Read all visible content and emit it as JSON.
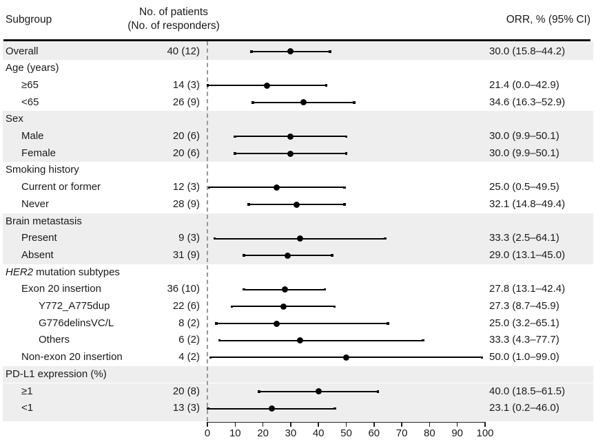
{
  "header": {
    "subgroup": "Subgroup",
    "patients_line1": "No. of patients",
    "patients_line2": "(No. of responders)",
    "orr": "ORR, % (95% CI)"
  },
  "colors": {
    "text": "#1a1a1a",
    "band": "#eeeeee",
    "dashed_line": "#979797",
    "axis": "#1a1a1a",
    "marker": "#000000",
    "rule": "#111111"
  },
  "chart_data": {
    "type": "forest",
    "x_axis_label": "",
    "xlim": [
      0,
      100
    ],
    "x_ticks": [
      0,
      10,
      20,
      30,
      40,
      50,
      60,
      70,
      80,
      90,
      100
    ],
    "reference_line_x": 0,
    "rows": [
      {
        "kind": "data",
        "label": "Overall",
        "indent": 0,
        "shaded": true,
        "patients": "40 (12)",
        "est": 30.0,
        "lo": 15.8,
        "hi": 44.2,
        "orr": "30.0 (15.8–44.2)"
      },
      {
        "kind": "section",
        "label": "Age (years)",
        "shaded": false
      },
      {
        "kind": "data",
        "label": "≥65",
        "indent": 1,
        "shaded": false,
        "patients": "14 (3)",
        "est": 21.4,
        "lo": 0.0,
        "hi": 42.9,
        "orr": "21.4 (0.0–42.9)"
      },
      {
        "kind": "data",
        "label": "<65",
        "indent": 1,
        "shaded": false,
        "patients": "26 (9)",
        "est": 34.6,
        "lo": 16.3,
        "hi": 52.9,
        "orr": "34.6 (16.3–52.9)"
      },
      {
        "kind": "section",
        "label": "Sex",
        "shaded": true
      },
      {
        "kind": "data",
        "label": "Male",
        "indent": 1,
        "shaded": true,
        "patients": "20 (6)",
        "est": 30.0,
        "lo": 9.9,
        "hi": 50.1,
        "orr": "30.0 (9.9–50.1)"
      },
      {
        "kind": "data",
        "label": "Female",
        "indent": 1,
        "shaded": true,
        "patients": "20 (6)",
        "est": 30.0,
        "lo": 9.9,
        "hi": 50.1,
        "orr": "30.0 (9.9–50.1)"
      },
      {
        "kind": "section",
        "label": "Smoking history",
        "shaded": false
      },
      {
        "kind": "data",
        "label": "Current or former",
        "indent": 1,
        "shaded": false,
        "patients": "12 (3)",
        "est": 25.0,
        "lo": 0.5,
        "hi": 49.5,
        "orr": "25.0 (0.5–49.5)"
      },
      {
        "kind": "data",
        "label": "Never",
        "indent": 1,
        "shaded": false,
        "patients": "28 (9)",
        "est": 32.1,
        "lo": 14.8,
        "hi": 49.4,
        "orr": "32.1 (14.8–49.4)"
      },
      {
        "kind": "section",
        "label": "Brain metastasis",
        "shaded": true
      },
      {
        "kind": "data",
        "label": "Present",
        "indent": 1,
        "shaded": true,
        "patients": "9 (3)",
        "est": 33.3,
        "lo": 2.5,
        "hi": 64.1,
        "orr": "33.3 (2.5–64.1)"
      },
      {
        "kind": "data",
        "label": "Absent",
        "indent": 1,
        "shaded": true,
        "patients": "31 (9)",
        "est": 29.0,
        "lo": 13.1,
        "hi": 45.0,
        "orr": "29.0 (13.1–45.0)"
      },
      {
        "kind": "section",
        "label": "HER2 mutation subtypes",
        "label_parts": [
          {
            "text": "HER2",
            "italic": true
          },
          {
            "text": " mutation subtypes",
            "italic": false
          }
        ],
        "shaded": false
      },
      {
        "kind": "data",
        "label": "Exon 20 insertion",
        "indent": 1,
        "shaded": false,
        "patients": "36 (10)",
        "est": 27.8,
        "lo": 13.1,
        "hi": 42.4,
        "orr": "27.8 (13.1–42.4)"
      },
      {
        "kind": "data",
        "label": "Y772_A775dup",
        "indent": 2,
        "shaded": false,
        "patients": "22 (6)",
        "est": 27.3,
        "lo": 8.7,
        "hi": 45.9,
        "orr": "27.3 (8.7–45.9)"
      },
      {
        "kind": "data",
        "label": "G776delinsVC/L",
        "indent": 2,
        "shaded": false,
        "patients": "8 (2)",
        "est": 25.0,
        "lo": 3.2,
        "hi": 65.1,
        "orr": "25.0 (3.2–65.1)"
      },
      {
        "kind": "data",
        "label": "Others",
        "indent": 2,
        "shaded": false,
        "patients": "6 (2)",
        "est": 33.3,
        "lo": 4.3,
        "hi": 77.7,
        "orr": "33.3 (4.3–77.7)"
      },
      {
        "kind": "data",
        "label": "Non-exon 20 insertion",
        "indent": 1,
        "shaded": false,
        "patients": "4 (2)",
        "est": 50.0,
        "lo": 1.0,
        "hi": 99.0,
        "orr": "50.0 (1.0–99.0)"
      },
      {
        "kind": "section",
        "label": "PD-L1 expression (%)",
        "shaded": true
      },
      {
        "kind": "data",
        "label": "≥1",
        "indent": 1,
        "shaded": true,
        "patients": "20 (8)",
        "est": 40.0,
        "lo": 18.5,
        "hi": 61.5,
        "orr": "40.0 (18.5–61.5)"
      },
      {
        "kind": "data",
        "label": "<1",
        "indent": 1,
        "shaded": true,
        "patients": "13 (3)",
        "est": 23.1,
        "lo": 0.2,
        "hi": 46.0,
        "orr": "23.1 (0.2–46.0)"
      }
    ]
  }
}
